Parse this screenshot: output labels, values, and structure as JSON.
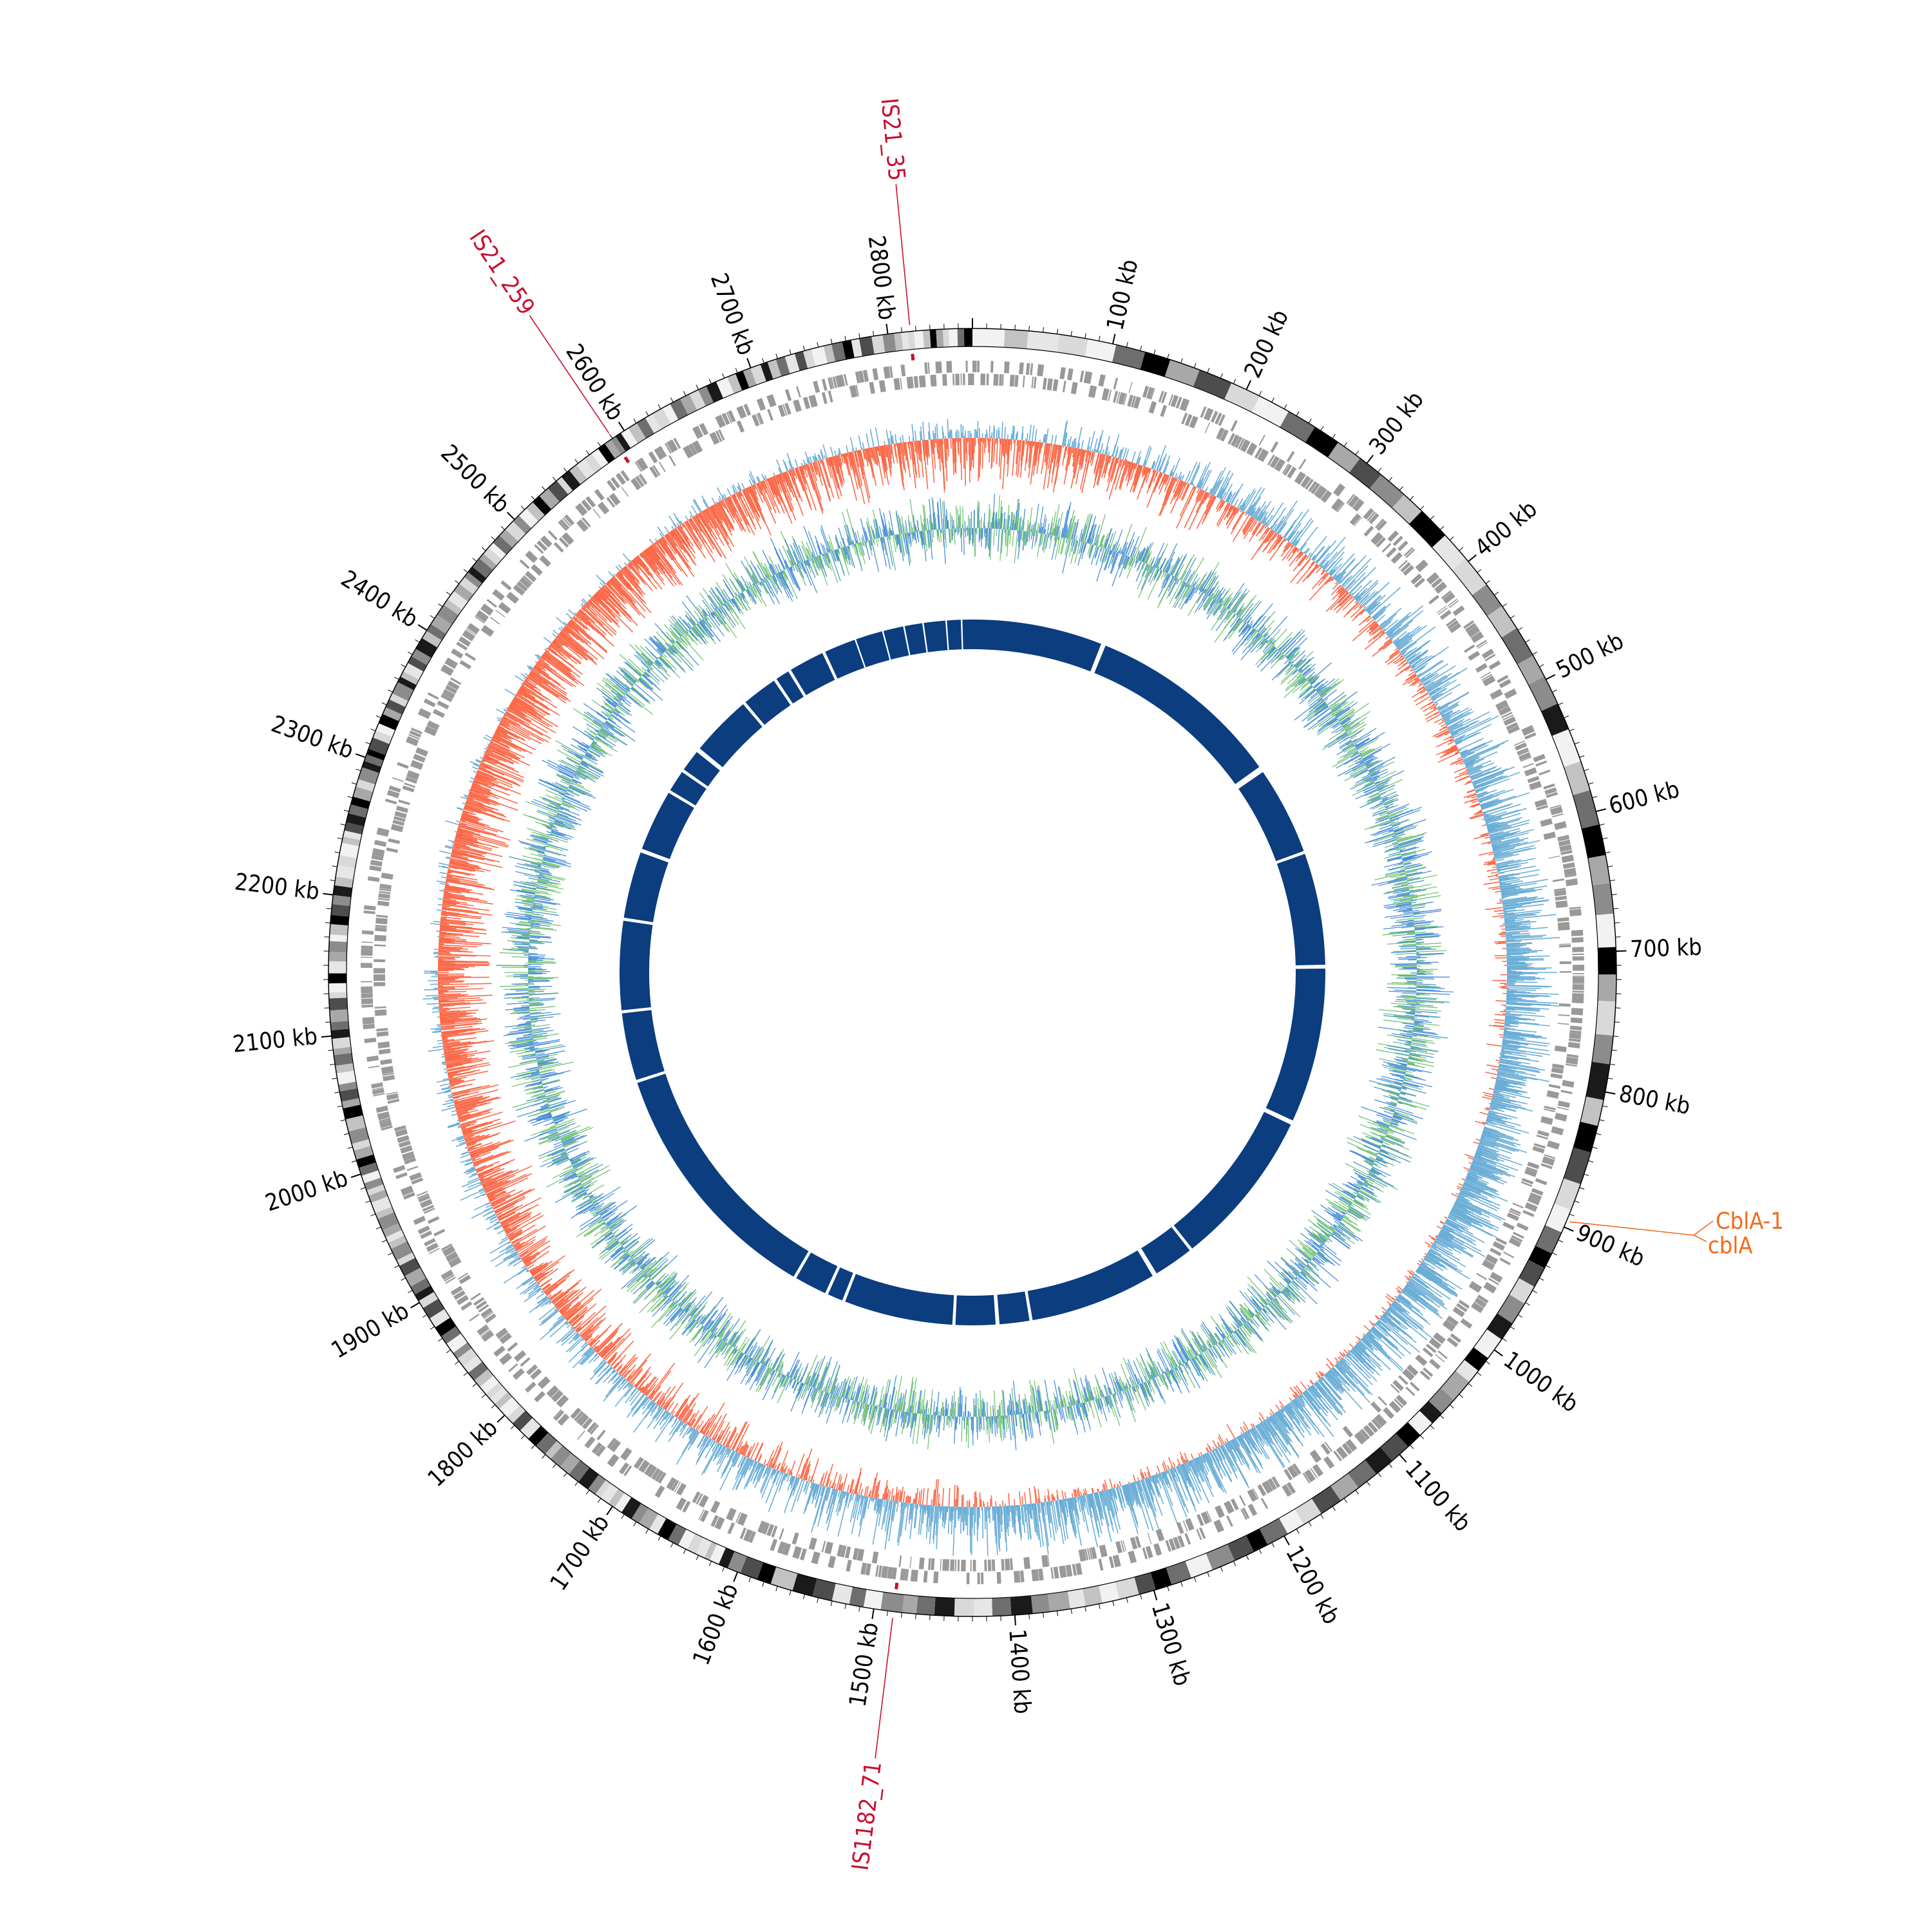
{
  "genome": {
    "length_kb": 2860,
    "tick_labels": [
      "100 kb",
      "200 kb",
      "300 kb",
      "400 kb",
      "500 kb",
      "600 kb",
      "700 kb",
      "800 kb",
      "900 kb",
      "1000 kb",
      "1100 kb",
      "1200 kb",
      "1300 kb",
      "1400 kb",
      "1500 kb",
      "1600 kb",
      "1700 kb",
      "1800 kb",
      "1900 kb",
      "2000 kb",
      "2100 kb",
      "2200 kb",
      "2300 kb",
      "2400 kb",
      "2500 kb",
      "2600 kb",
      "2700 kb",
      "2800 kb"
    ],
    "tick_positions_kb": [
      100,
      200,
      300,
      400,
      500,
      600,
      700,
      800,
      900,
      1000,
      1100,
      1200,
      1300,
      1400,
      1500,
      1600,
      1700,
      1800,
      1900,
      2000,
      2100,
      2200,
      2300,
      2400,
      2500,
      2600,
      2700,
      2800
    ]
  },
  "annotations": [
    {
      "label": "IS21_35",
      "position_kb": 2816,
      "color": "#c8102e"
    },
    {
      "label": "IS21_259",
      "position_kb": 2590,
      "color": "#c8102e"
    },
    {
      "label": "IS1182_71",
      "position_kb": 1486,
      "color": "#c8102e"
    },
    {
      "label": "CblA-1",
      "position_kb": 895,
      "color": "#f26a1b"
    },
    {
      "label": "cblA",
      "position_kb": 895,
      "color": "#f26a1b"
    }
  ],
  "tracks": [
    "ideogram",
    "genes",
    "gc_skew",
    "gc_content",
    "alignment"
  ],
  "colors": {
    "gc_positive": "#6baed6",
    "gc_negative": "#fb6a4a",
    "gc_content_green": "#74c476",
    "gc_content_blue": "#4a90d9",
    "alignment": "#0b3d7f",
    "genes": "#999999",
    "insertion": "#c8102e",
    "cbla": "#f26a1b"
  }
}
